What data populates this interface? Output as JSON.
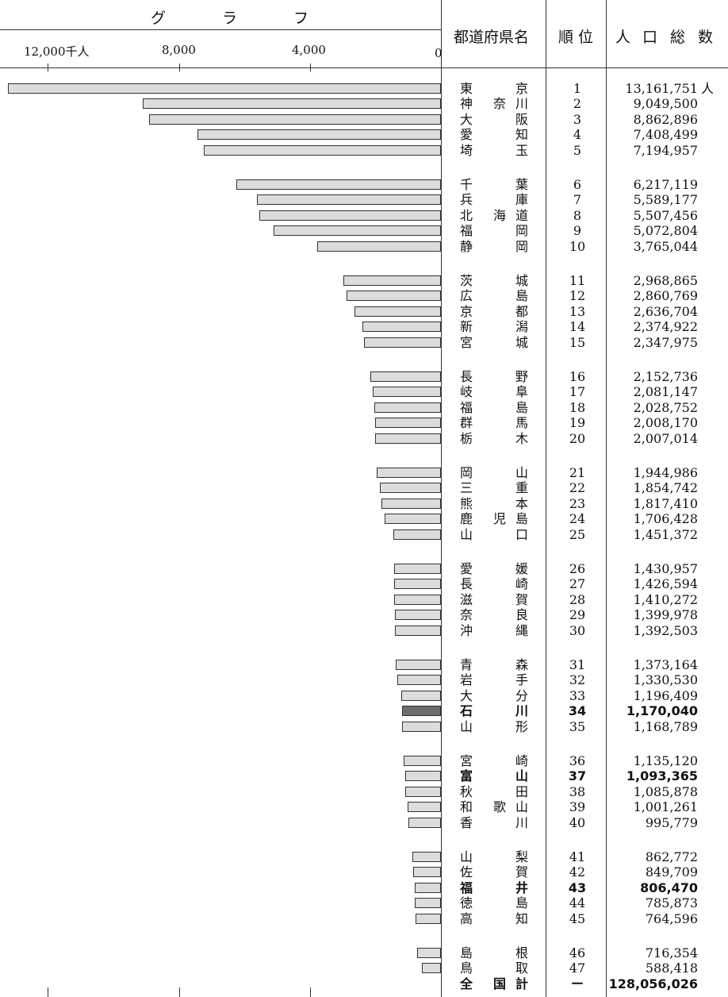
{
  "header": {
    "graph_title": [
      "グ",
      "ラ",
      "フ"
    ],
    "col_prefecture": "都道府県名",
    "col_rank": "順 位",
    "col_population": [
      "人",
      "口",
      "総",
      "数"
    ]
  },
  "chart_data": {
    "type": "bar",
    "orientation": "horizontal",
    "x_ticks": [
      "12,000千人",
      "8,000",
      "4,000",
      "0"
    ],
    "xlim": [
      0,
      13161751
    ],
    "unit": "人",
    "highlight_color": "#6d6d6d",
    "bar_color": "#dcdcdc",
    "rows": [
      {
        "name": [
          "東",
          "",
          "京"
        ],
        "rank": "1",
        "pop": "13,161,751",
        "value": 13161751
      },
      {
        "name": [
          "神",
          "奈",
          "川"
        ],
        "rank": "2",
        "pop": "9,049,500",
        "value": 9049500
      },
      {
        "name": [
          "大",
          "",
          "阪"
        ],
        "rank": "3",
        "pop": "8,862,896",
        "value": 8862896
      },
      {
        "name": [
          "愛",
          "",
          "知"
        ],
        "rank": "4",
        "pop": "7,408,499",
        "value": 7408499
      },
      {
        "name": [
          "埼",
          "",
          "玉"
        ],
        "rank": "5",
        "pop": "7,194,957",
        "value": 7194957
      },
      {
        "name": [
          "千",
          "",
          "葉"
        ],
        "rank": "6",
        "pop": "6,217,119",
        "value": 6217119
      },
      {
        "name": [
          "兵",
          "",
          "庫"
        ],
        "rank": "7",
        "pop": "5,589,177",
        "value": 5589177
      },
      {
        "name": [
          "北",
          "海",
          "道"
        ],
        "rank": "8",
        "pop": "5,507,456",
        "value": 5507456
      },
      {
        "name": [
          "福",
          "",
          "岡"
        ],
        "rank": "9",
        "pop": "5,072,804",
        "value": 5072804
      },
      {
        "name": [
          "静",
          "",
          "岡"
        ],
        "rank": "10",
        "pop": "3,765,044",
        "value": 3765044
      },
      {
        "name": [
          "茨",
          "",
          "城"
        ],
        "rank": "11",
        "pop": "2,968,865",
        "value": 2968865
      },
      {
        "name": [
          "広",
          "",
          "島"
        ],
        "rank": "12",
        "pop": "2,860,769",
        "value": 2860769
      },
      {
        "name": [
          "京",
          "",
          "都"
        ],
        "rank": "13",
        "pop": "2,636,704",
        "value": 2636704
      },
      {
        "name": [
          "新",
          "",
          "潟"
        ],
        "rank": "14",
        "pop": "2,374,922",
        "value": 2374922
      },
      {
        "name": [
          "宮",
          "",
          "城"
        ],
        "rank": "15",
        "pop": "2,347,975",
        "value": 2347975
      },
      {
        "name": [
          "長",
          "",
          "野"
        ],
        "rank": "16",
        "pop": "2,152,736",
        "value": 2152736
      },
      {
        "name": [
          "岐",
          "",
          "阜"
        ],
        "rank": "17",
        "pop": "2,081,147",
        "value": 2081147
      },
      {
        "name": [
          "福",
          "",
          "島"
        ],
        "rank": "18",
        "pop": "2,028,752",
        "value": 2028752
      },
      {
        "name": [
          "群",
          "",
          "馬"
        ],
        "rank": "19",
        "pop": "2,008,170",
        "value": 2008170
      },
      {
        "name": [
          "栃",
          "",
          "木"
        ],
        "rank": "20",
        "pop": "2,007,014",
        "value": 2007014
      },
      {
        "name": [
          "岡",
          "",
          "山"
        ],
        "rank": "21",
        "pop": "1,944,986",
        "value": 1944986
      },
      {
        "name": [
          "三",
          "",
          "重"
        ],
        "rank": "22",
        "pop": "1,854,742",
        "value": 1854742
      },
      {
        "name": [
          "熊",
          "",
          "本"
        ],
        "rank": "23",
        "pop": "1,817,410",
        "value": 1817410
      },
      {
        "name": [
          "鹿",
          "児",
          "島"
        ],
        "rank": "24",
        "pop": "1,706,428",
        "value": 1706428
      },
      {
        "name": [
          "山",
          "",
          "口"
        ],
        "rank": "25",
        "pop": "1,451,372",
        "value": 1451372
      },
      {
        "name": [
          "愛",
          "",
          "媛"
        ],
        "rank": "26",
        "pop": "1,430,957",
        "value": 1430957
      },
      {
        "name": [
          "長",
          "",
          "崎"
        ],
        "rank": "27",
        "pop": "1,426,594",
        "value": 1426594
      },
      {
        "name": [
          "滋",
          "",
          "賀"
        ],
        "rank": "28",
        "pop": "1,410,272",
        "value": 1410272
      },
      {
        "name": [
          "奈",
          "",
          "良"
        ],
        "rank": "29",
        "pop": "1,399,978",
        "value": 1399978
      },
      {
        "name": [
          "沖",
          "",
          "縄"
        ],
        "rank": "30",
        "pop": "1,392,503",
        "value": 1392503
      },
      {
        "name": [
          "青",
          "",
          "森"
        ],
        "rank": "31",
        "pop": "1,373,164",
        "value": 1373164
      },
      {
        "name": [
          "岩",
          "",
          "手"
        ],
        "rank": "32",
        "pop": "1,330,530",
        "value": 1330530
      },
      {
        "name": [
          "大",
          "",
          "分"
        ],
        "rank": "33",
        "pop": "1,196,409",
        "value": 1196409
      },
      {
        "name": [
          "石",
          "",
          "川"
        ],
        "rank": "34",
        "pop": "1,170,040",
        "value": 1170040,
        "bold": true,
        "highlight": true
      },
      {
        "name": [
          "山",
          "",
          "形"
        ],
        "rank": "35",
        "pop": "1,168,789",
        "value": 1168789
      },
      {
        "name": [
          "宮",
          "",
          "崎"
        ],
        "rank": "36",
        "pop": "1,135,120",
        "value": 1135120
      },
      {
        "name": [
          "富",
          "",
          "山"
        ],
        "rank": "37",
        "pop": "1,093,365",
        "value": 1093365,
        "bold": true
      },
      {
        "name": [
          "秋",
          "",
          "田"
        ],
        "rank": "38",
        "pop": "1,085,878",
        "value": 1085878
      },
      {
        "name": [
          "和",
          "歌",
          "山"
        ],
        "rank": "39",
        "pop": "1,001,261",
        "value": 1001261
      },
      {
        "name": [
          "香",
          "",
          "川"
        ],
        "rank": "40",
        "pop": "995,779",
        "value": 995779
      },
      {
        "name": [
          "山",
          "",
          "梨"
        ],
        "rank": "41",
        "pop": "862,772",
        "value": 862772
      },
      {
        "name": [
          "佐",
          "",
          "賀"
        ],
        "rank": "42",
        "pop": "849,709",
        "value": 849709
      },
      {
        "name": [
          "福",
          "",
          "井"
        ],
        "rank": "43",
        "pop": "806,470",
        "value": 806470,
        "bold": true
      },
      {
        "name": [
          "徳",
          "",
          "島"
        ],
        "rank": "44",
        "pop": "785,873",
        "value": 785873
      },
      {
        "name": [
          "高",
          "",
          "知"
        ],
        "rank": "45",
        "pop": "764,596",
        "value": 764596
      },
      {
        "name": [
          "島",
          "",
          "根"
        ],
        "rank": "46",
        "pop": "716,354",
        "value": 716354
      },
      {
        "name": [
          "鳥",
          "",
          "取"
        ],
        "rank": "47",
        "pop": "588,418",
        "value": 588418
      }
    ],
    "total": {
      "name": [
        "全",
        "国",
        "計"
      ],
      "rank": "ー",
      "pop": "128,056,026"
    }
  }
}
